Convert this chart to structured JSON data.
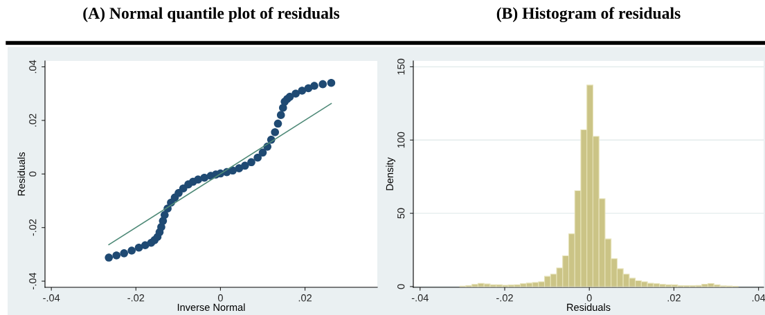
{
  "chart_data": [
    {
      "type": "scatter",
      "title": "(A) Normal quantile plot of residuals",
      "xlabel": "Inverse Normal",
      "ylabel": "Residuals",
      "xlim": [
        -0.0415,
        0.0371
      ],
      "ylim": [
        -0.0423,
        0.0422
      ],
      "xticks": [
        {
          "value": -0.04,
          "label": "-.04"
        },
        {
          "value": -0.02,
          "label": "-.02"
        },
        {
          "value": 0,
          "label": "0"
        },
        {
          "value": 0.02,
          "label": ".02"
        }
      ],
      "yticks": [
        {
          "value": -0.04,
          "label": "-.04"
        },
        {
          "value": -0.02,
          "label": "-.02"
        },
        {
          "value": 0,
          "label": "0"
        },
        {
          "value": 0.02,
          "label": ".02"
        },
        {
          "value": 0.04,
          "label": ".04"
        }
      ],
      "grid": false,
      "series": [
        {
          "type": "scatter",
          "marker": "circle",
          "color": "#1f4a73",
          "x": [
            -0.0264,
            -0.0246,
            -0.0228,
            -0.021,
            -0.0193,
            -0.0178,
            -0.0164,
            -0.0156,
            -0.0149,
            -0.0144,
            -0.014,
            -0.0136,
            -0.0132,
            -0.0125,
            -0.0117,
            -0.0108,
            -0.0099,
            -0.0088,
            -0.0076,
            -0.0065,
            -0.0053,
            -0.0038,
            -0.0023,
            -0.0011,
            0,
            0.0015,
            0.0029,
            0.0044,
            0.0058,
            0.0073,
            0.0088,
            0.01,
            0.0111,
            0.012,
            0.0129,
            0.0136,
            0.0143,
            0.0148,
            0.0152,
            0.0158,
            0.0164,
            0.0178,
            0.0193,
            0.0208,
            0.0222,
            0.0242,
            0.0262
          ],
          "values": [
            -0.0312,
            -0.0304,
            -0.0296,
            -0.0286,
            -0.0275,
            -0.0266,
            -0.0257,
            -0.0247,
            -0.0235,
            -0.0217,
            -0.0198,
            -0.0175,
            -0.0153,
            -0.0129,
            -0.0107,
            -0.0088,
            -0.0071,
            -0.0054,
            -0.0039,
            -0.0029,
            -0.0021,
            -0.0014,
            -0.0007,
            -0.0002,
            0.0002,
            0.0007,
            0.0013,
            0.0021,
            0.0031,
            0.0044,
            0.0061,
            0.008,
            0.0102,
            0.0128,
            0.0156,
            0.0188,
            0.022,
            0.0247,
            0.027,
            0.028,
            0.0288,
            0.03,
            0.0311,
            0.032,
            0.0329,
            0.0335,
            0.034
          ]
        },
        {
          "type": "line",
          "color": "#4f8a78",
          "x": [
            -0.0264,
            0.0262
          ],
          "values": [
            -0.0264,
            0.0263
          ]
        }
      ]
    },
    {
      "type": "histogram",
      "title": "(B) Histogram of residuals",
      "xlabel": "Residuals",
      "ylabel": "Density",
      "color": "#cbc486",
      "xlim": [
        -0.0416,
        0.0412
      ],
      "ylim": [
        -0.5,
        154
      ],
      "xticks": [
        {
          "value": -0.04,
          "label": "-.04"
        },
        {
          "value": -0.02,
          "label": "-.02"
        },
        {
          "value": 0,
          "label": "0"
        },
        {
          "value": 0.02,
          "label": ".02"
        },
        {
          "value": 0.04,
          "label": ".04"
        }
      ],
      "yticks": [
        0,
        50,
        100,
        150
      ],
      "grid": "y",
      "bins": [
        -0.0306,
        -0.02917,
        -0.02774,
        -0.02631,
        -0.02488,
        -0.02345,
        -0.02202,
        -0.02059,
        -0.01916,
        -0.01773,
        -0.0163,
        -0.01487,
        -0.01344,
        -0.01201,
        -0.01058,
        -0.00915,
        -0.00772,
        -0.00629,
        -0.00486,
        -0.00343,
        -0.002,
        -0.00057,
        0.00086,
        0.00229,
        0.00372,
        0.00515,
        0.00658,
        0.00801,
        0.00944,
        0.01087,
        0.0123,
        0.01373,
        0.01516,
        0.01659,
        0.01802,
        0.01945,
        0.02088,
        0.02231,
        0.02374,
        0.02517,
        0.0266,
        0.02803,
        0.02946,
        0.03089,
        0.03232,
        0.03375,
        0.03518
      ],
      "values": [
        0.3,
        0.7,
        1.5,
        2.2,
        1.8,
        1.3,
        1.3,
        0.9,
        1.1,
        1.3,
        2,
        2.4,
        2.8,
        3.3,
        7,
        8.5,
        12.7,
        21,
        36,
        65.4,
        107,
        137.5,
        102.5,
        60,
        32.5,
        19,
        12.2,
        8.5,
        5.7,
        4,
        3.3,
        2.3,
        2,
        1.5,
        1.3,
        1.2,
        0.7,
        0.7,
        0.7,
        0.8,
        1.6,
        2.1,
        1.2,
        0.5,
        0.4,
        0.2
      ]
    }
  ]
}
